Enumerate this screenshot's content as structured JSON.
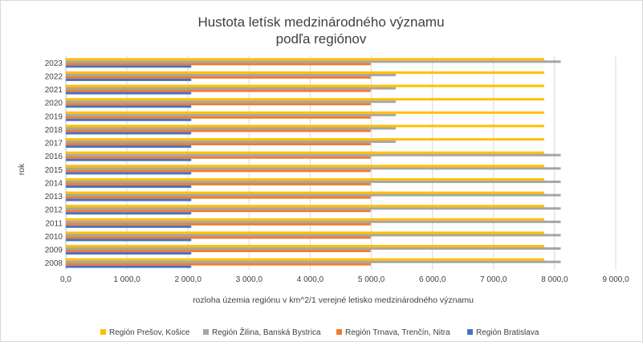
{
  "chart_data": {
    "type": "bar",
    "orientation": "horizontal",
    "title": "Hustota letísk medzinárodného významu",
    "subtitle": "podľa regiónov",
    "xlabel": "rozloha územia regiónu v km^2/1 verejné letisko medzinárodného významu",
    "ylabel": "rok",
    "xlim": [
      0,
      9000
    ],
    "x_ticks": [
      "0,0",
      "1 000,0",
      "2 000,0",
      "3 000,0",
      "4 000,0",
      "5 000,0",
      "6 000,0",
      "7 000,0",
      "8 000,0",
      "9 000,0"
    ],
    "grid": true,
    "legend_position": "bottom",
    "categories": [
      "2008",
      "2009",
      "2010",
      "2011",
      "2012",
      "2013",
      "2014",
      "2015",
      "2016",
      "2017",
      "2018",
      "2019",
      "2020",
      "2021",
      "2022",
      "2023"
    ],
    "series": [
      {
        "name": "Región Bratislava",
        "color": "#4472c4",
        "values": [
          2053,
          2053,
          2053,
          2053,
          2053,
          2053,
          2053,
          2053,
          2053,
          2053,
          2053,
          2053,
          2053,
          2053,
          2053,
          2053
        ]
      },
      {
        "name": "Región Trnava, Trenčín, Nitra",
        "color": "#ed7d31",
        "values": [
          4990,
          4990,
          4990,
          4990,
          4990,
          4990,
          4990,
          4990,
          4990,
          4990,
          4990,
          4990,
          4990,
          4990,
          4990,
          4990
        ]
      },
      {
        "name": "Región Žilina, Banská Bystrica",
        "color": "#a5a5a5",
        "values": [
          8100,
          8100,
          8100,
          8100,
          8100,
          8100,
          8100,
          8100,
          8100,
          5400,
          5400,
          5400,
          5400,
          5400,
          5400,
          8100
        ]
      },
      {
        "name": "Región Prešov, Košice",
        "color": "#ffc000",
        "values": [
          7830,
          7830,
          7830,
          7830,
          7830,
          7830,
          7830,
          7830,
          7830,
          7830,
          7830,
          7830,
          7830,
          7830,
          7830,
          7830
        ]
      }
    ],
    "legend_order": [
      "Región Prešov, Košice",
      "Región Žilina, Banská Bystrica",
      "Región Trnava, Trenčín, Nitra",
      "Región Bratislava"
    ]
  }
}
